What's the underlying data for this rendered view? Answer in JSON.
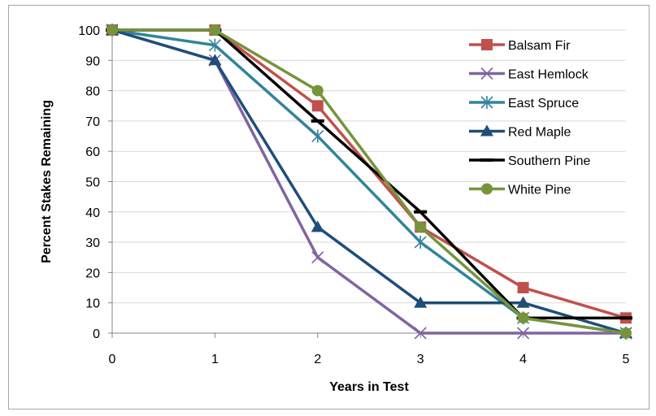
{
  "chart_data": {
    "type": "line",
    "title": "",
    "xlabel": "Years in Test",
    "ylabel": "Percent Stakes Remaining",
    "x": [
      0,
      1,
      2,
      3,
      4,
      5
    ],
    "xlim": [
      0,
      5
    ],
    "ylim": [
      0,
      100
    ],
    "y_ticks": [
      0,
      10,
      20,
      30,
      40,
      50,
      60,
      70,
      80,
      90,
      100
    ],
    "x_ticks": [
      0,
      1,
      2,
      3,
      4,
      5
    ],
    "grid": "horizontal",
    "legend_position": "top-right",
    "series": [
      {
        "name": "Balsam Fir",
        "color": "#c0504d",
        "marker": "square",
        "values": [
          100,
          100,
          75,
          35,
          15,
          5
        ]
      },
      {
        "name": "East Hemlock",
        "color": "#8064a2",
        "marker": "x",
        "values": [
          100,
          90,
          25,
          0,
          0,
          0
        ]
      },
      {
        "name": "East Spruce",
        "color": "#31849b",
        "marker": "star",
        "values": [
          100,
          95,
          65,
          30,
          5,
          0
        ]
      },
      {
        "name": "Red Maple",
        "color": "#1f4e79",
        "marker": "triangle",
        "values": [
          100,
          90,
          35,
          10,
          10,
          0
        ]
      },
      {
        "name": "Southern Pine",
        "color": "#000000",
        "marker": "dash",
        "values": [
          100,
          100,
          70,
          40,
          5,
          5
        ]
      },
      {
        "name": "White Pine",
        "color": "#77933c",
        "marker": "circle",
        "values": [
          100,
          100,
          80,
          35,
          5,
          0
        ]
      }
    ]
  }
}
